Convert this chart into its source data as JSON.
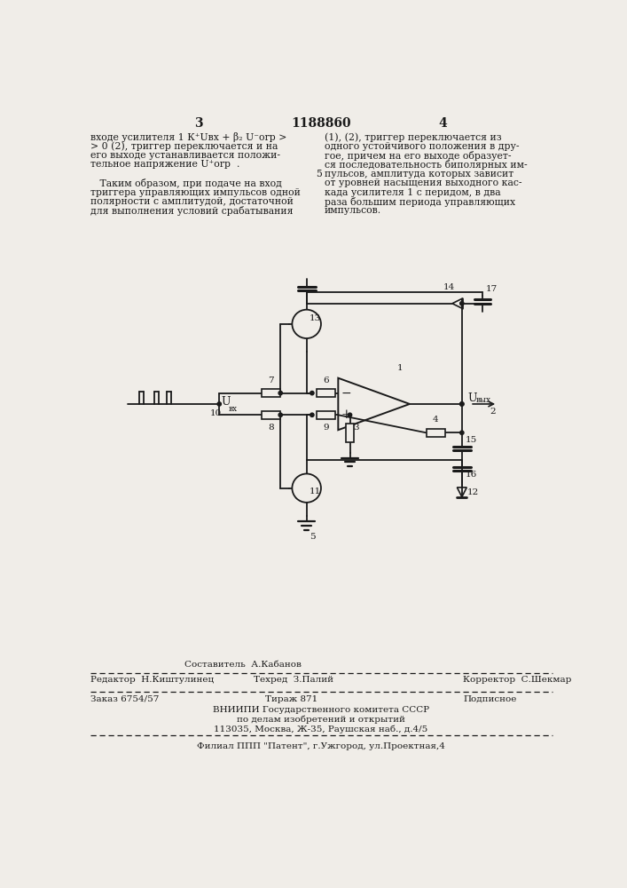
{
  "bg_color": "#f0ede8",
  "line_color": "#1a1a1a",
  "page_num_left": "3",
  "page_num_center": "1188860",
  "page_num_right": "4",
  "footer_editor": "Редактор  Н.Киштулинец",
  "footer_composer": "Составитель  А.Кабанов",
  "footer_techred": "Техред  З.Палий",
  "footer_corrector": "Корректор  С.Шекмар",
  "footer_order": "Заказ 6754/57",
  "footer_tirazh": "Тираж 871",
  "footer_podpisnoe": "Подписное",
  "footer_vniipii": "ВНИИПИ Государственного комитета СССР",
  "footer_po_delam": "по делам изобретений и открытий",
  "footer_address": "113035, Москва, Ж-35, Раушская наб., д.4/5",
  "footer_filial": "Филиал ППП \"Патент\", г.Ужгород, ул.Проектная,4"
}
